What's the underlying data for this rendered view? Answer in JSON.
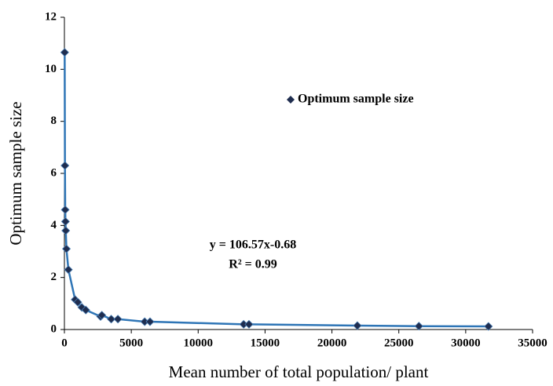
{
  "chart_data": {
    "type": "scatter",
    "xlabel": "Mean number of total population/ plant",
    "ylabel": "Optimum sample size",
    "xlim": [
      0,
      35000
    ],
    "xticks": [
      0,
      5000,
      10000,
      15000,
      20000,
      25000,
      30000,
      35000
    ],
    "ylim": [
      0,
      12
    ],
    "yticks": [
      0,
      2,
      4,
      6,
      8,
      10,
      12
    ],
    "legend": "upper right",
    "line": true,
    "line_color": "#2e75b6",
    "series": [
      {
        "name": "Optimum sample size",
        "color": "#1f2d4f",
        "x": [
          20,
          40,
          60,
          80,
          100,
          150,
          300,
          800,
          1000,
          1300,
          1600,
          2700,
          2800,
          3500,
          4000,
          6000,
          6400,
          13400,
          13800,
          21900,
          26500,
          31700
        ],
        "values": [
          10.65,
          6.3,
          4.6,
          4.15,
          3.8,
          3.1,
          2.3,
          1.15,
          1.05,
          0.85,
          0.75,
          0.5,
          0.55,
          0.4,
          0.4,
          0.3,
          0.3,
          0.2,
          0.2,
          0.15,
          0.13,
          0.12
        ]
      }
    ],
    "annotations": [
      "y = 106.57x-0.68",
      "R² = 0.99"
    ]
  }
}
